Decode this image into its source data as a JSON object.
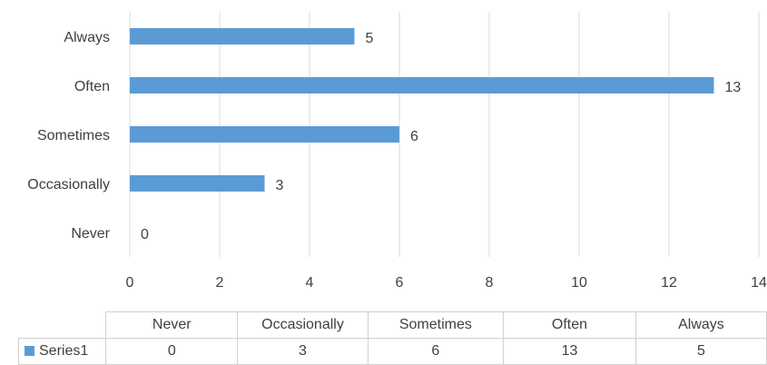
{
  "chart_data": {
    "type": "bar",
    "orientation": "horizontal",
    "categories": [
      "Never",
      "Occasionally",
      "Sometimes",
      "Often",
      "Always"
    ],
    "series": [
      {
        "name": "Series1",
        "values": [
          0,
          3,
          6,
          13,
          5
        ],
        "color": "#5b9bd5"
      }
    ],
    "xlim": [
      0,
      14
    ],
    "xticks": [
      "0",
      "2",
      "4",
      "6",
      "8",
      "10",
      "12",
      "14"
    ],
    "data_labels": [
      "0",
      "3",
      "6",
      "13",
      "5"
    ],
    "grid": "vertical",
    "legend": "data-table-below",
    "title": "",
    "xlabel": "",
    "ylabel": ""
  },
  "data_table": {
    "headers": [
      "Never",
      "Occasionally",
      "Sometimes",
      "Often",
      "Always"
    ],
    "series_label": "Series1",
    "values": [
      "0",
      "3",
      "6",
      "13",
      "5"
    ]
  },
  "colors": {
    "bar": "#5b9bd5",
    "grid": "#d9d9d9",
    "text": "#404040"
  }
}
